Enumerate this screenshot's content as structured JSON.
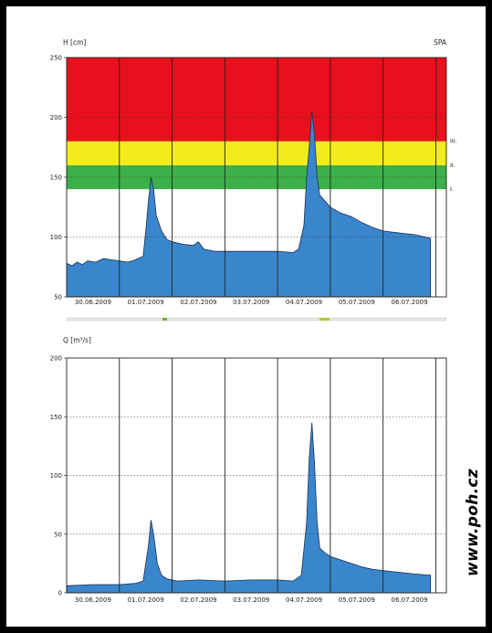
{
  "credit": "www.poh.cz",
  "colors": {
    "fill": "#3a86cc",
    "red": "#e8101c",
    "yellow": "#f2ec1a",
    "green": "#3cb049"
  },
  "chart_data": [
    {
      "type": "area",
      "ylabel": "H [cm]",
      "station": "SPA",
      "ylim": [
        50,
        250
      ],
      "yticks": [
        50,
        100,
        150,
        200,
        250
      ],
      "xticks": [
        "30.06.2009",
        "01.07.2009",
        "02.07.2009",
        "03.07.2009",
        "04.07.2009",
        "05.07.2009",
        "06.07.2009"
      ],
      "xlim_days": [
        0,
        7.2
      ],
      "grid": true,
      "zones": [
        {
          "label": "I.",
          "from": 140,
          "to": 160,
          "color": "green"
        },
        {
          "label": "II.",
          "from": 160,
          "to": 180,
          "color": "yellow"
        },
        {
          "label": "III.",
          "from": 180,
          "to": 250,
          "color": "red"
        }
      ],
      "series": [
        {
          "x": [
            0,
            0.1,
            0.2,
            0.3,
            0.4,
            0.55,
            0.7,
            0.85,
            1.0,
            1.15,
            1.25,
            1.35,
            1.45,
            1.5,
            1.55,
            1.6,
            1.65,
            1.7,
            1.8,
            1.9,
            2.0,
            2.2,
            2.4,
            2.5,
            2.6,
            2.8,
            3.0,
            3.5,
            4.0,
            4.3,
            4.4,
            4.5,
            4.55,
            4.6,
            4.65,
            4.7,
            4.75,
            4.8,
            4.9,
            5.0,
            5.2,
            5.4,
            5.6,
            5.8,
            6.0,
            6.2,
            6.4,
            6.6,
            6.8,
            6.9
          ],
          "y": [
            78,
            76,
            79,
            77,
            80,
            79,
            82,
            81,
            80,
            79,
            80,
            82,
            84,
            105,
            130,
            150,
            140,
            118,
            105,
            98,
            96,
            94,
            93,
            96,
            90,
            88,
            88,
            88,
            88,
            87,
            90,
            110,
            150,
            175,
            205,
            185,
            150,
            135,
            130,
            125,
            120,
            117,
            112,
            108,
            105,
            104,
            103,
            102,
            100,
            99
          ]
        }
      ]
    },
    {
      "type": "area",
      "ylabel": "Q [m³/s]",
      "ylim": [
        0,
        200
      ],
      "yticks": [
        0,
        50,
        100,
        150,
        200
      ],
      "xticks": [
        "30.06.2009",
        "01.07.2009",
        "02.07.2009",
        "03.07.2009",
        "04.07.2009",
        "05.07.2009",
        "06.07.2009"
      ],
      "xlim_days": [
        0,
        7.2
      ],
      "grid": true,
      "series": [
        {
          "x": [
            0,
            0.5,
            1.0,
            1.3,
            1.45,
            1.55,
            1.6,
            1.65,
            1.72,
            1.8,
            1.9,
            2.1,
            2.5,
            3.0,
            3.5,
            4.0,
            4.3,
            4.45,
            4.55,
            4.6,
            4.65,
            4.7,
            4.75,
            4.8,
            4.9,
            5.0,
            5.2,
            5.4,
            5.6,
            5.8,
            6.0,
            6.2,
            6.4,
            6.6,
            6.9
          ],
          "y": [
            6,
            7,
            7,
            8,
            10,
            40,
            62,
            50,
            25,
            15,
            12,
            10,
            11,
            10,
            11,
            11,
            10,
            15,
            60,
            115,
            145,
            110,
            60,
            38,
            34,
            31,
            28,
            25,
            22,
            20,
            19,
            18,
            17,
            16,
            15
          ]
        }
      ]
    }
  ]
}
